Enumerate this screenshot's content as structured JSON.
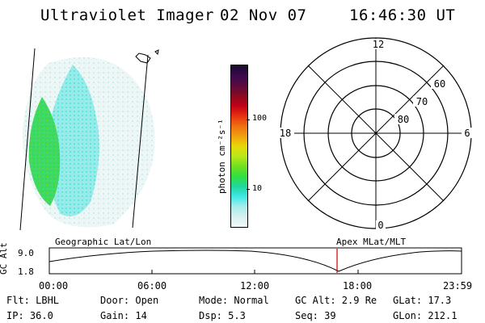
{
  "header": {
    "instrument": "Ultraviolet Imager",
    "date": "02 Nov 07",
    "time": "16:46:30 UT"
  },
  "colorbar": {
    "unit_label": "photon cm⁻²s⁻¹",
    "ticks": [
      "100",
      "10"
    ],
    "colors": [
      "#1a0a2e",
      "#3a0a4e",
      "#5a0a3e",
      "#8a0a1e",
      "#c00018",
      "#e83010",
      "#f07010",
      "#f0a010",
      "#e8d808",
      "#b8e818",
      "#70e020",
      "#30e040",
      "#20d8a0",
      "#40e8e8",
      "#a8ecec",
      "#d8f0f0",
      "#f0f8f8"
    ]
  },
  "polar_plot": {
    "hour_labels": {
      "top": "12",
      "left": "18",
      "right": "6",
      "bottom": "0"
    },
    "lat_labels": [
      "60",
      "70",
      "80"
    ]
  },
  "timeline": {
    "left_label": "Geographic Lat/Lon",
    "right_label": "Apex MLat/MLT",
    "ylabel": "GC Alt",
    "ytick_top": "9.0",
    "ytick_bottom": "1.8",
    "xticks": [
      "00:00",
      "06:00",
      "12:00",
      "18:00",
      "23:59"
    ]
  },
  "info": {
    "flt": "Flt: LBHL",
    "ip": "IP: 36.0",
    "door": "Door: Open",
    "gain": "Gain: 14",
    "mode": "Mode: Normal",
    "dsp": "Dsp:    5.3",
    "gcalt": "GC Alt: 2.9 Re",
    "seq": "Seq: 39",
    "glat": "GLat:  17.3",
    "glon": "GLon: 212.1"
  }
}
